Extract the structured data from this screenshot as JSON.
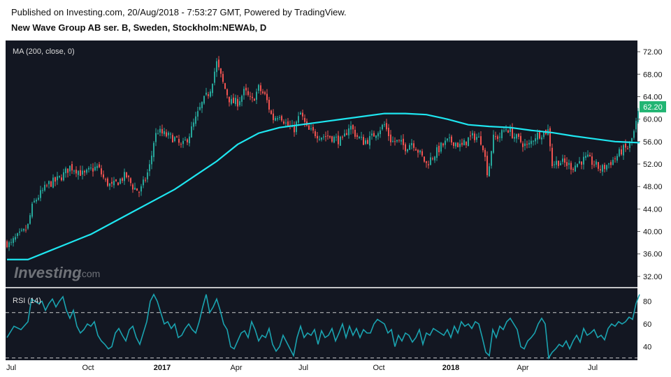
{
  "header": {
    "published": "Published on Investing.com, 20/Aug/2018 - 7:53:27 GMT, Powered by TradingView.",
    "title": "New Wave Group AB ser. B, Sweden, Stockholm:NEWAb, D"
  },
  "logo": {
    "main": "Investing",
    "suffix": ".com"
  },
  "colors": {
    "background": "#131722",
    "up": "#26a69a",
    "down": "#ef5350",
    "ma": "#1ee6f0",
    "rsi": "#1aa3b0",
    "last_price": "#22b573"
  },
  "chart_data": [
    {
      "type": "candlestick",
      "indicator_label": "MA (200, close, 0)",
      "ylim": [
        30,
        74
      ],
      "y_ticks": [
        "72.00",
        "68.00",
        "64.00",
        "60.00",
        "56.00",
        "52.00",
        "48.00",
        "44.00",
        "40.00",
        "36.00",
        "32.00"
      ],
      "last_price": "62.20",
      "x_ticks": [
        {
          "label": "Jul",
          "bold": false,
          "x": 16
        },
        {
          "label": "Oct",
          "bold": false,
          "x": 126
        },
        {
          "label": "2017",
          "bold": true,
          "x": 232
        },
        {
          "label": "Apr",
          "bold": false,
          "x": 338
        },
        {
          "label": "Jul",
          "bold": false,
          "x": 434
        },
        {
          "label": "Oct",
          "bold": false,
          "x": 542
        },
        {
          "label": "2018",
          "bold": true,
          "x": 645
        },
        {
          "label": "Apr",
          "bold": false,
          "x": 748
        },
        {
          "label": "Jul",
          "bold": false,
          "x": 848
        }
      ],
      "price_path": [
        [
          0,
          38
        ],
        [
          5,
          37.5
        ],
        [
          10,
          38.5
        ],
        [
          15,
          39
        ],
        [
          20,
          39.5
        ],
        [
          25,
          40
        ],
        [
          30,
          41
        ],
        [
          35,
          44
        ],
        [
          40,
          45.5
        ],
        [
          50,
          47
        ],
        [
          60,
          48.5
        ],
        [
          70,
          49
        ],
        [
          80,
          50
        ],
        [
          90,
          51.5
        ],
        [
          100,
          51
        ],
        [
          110,
          50
        ],
        [
          120,
          51
        ],
        [
          130,
          51.5
        ],
        [
          140,
          49
        ],
        [
          150,
          48
        ],
        [
          160,
          49
        ],
        [
          170,
          50
        ],
        [
          180,
          48
        ],
        [
          190,
          47
        ],
        [
          200,
          50
        ],
        [
          205,
          52
        ],
        [
          210,
          56
        ],
        [
          215,
          58
        ],
        [
          220,
          57.5
        ],
        [
          230,
          57
        ],
        [
          240,
          56.5
        ],
        [
          250,
          55
        ],
        [
          260,
          57
        ],
        [
          270,
          60
        ],
        [
          280,
          63
        ],
        [
          290,
          65
        ],
        [
          300,
          70
        ],
        [
          305,
          68
        ],
        [
          310,
          66
        ],
        [
          320,
          63
        ],
        [
          330,
          63
        ],
        [
          340,
          65
        ],
        [
          350,
          63
        ],
        [
          360,
          65.5
        ],
        [
          370,
          64
        ],
        [
          380,
          60
        ],
        [
          390,
          61
        ],
        [
          400,
          59
        ],
        [
          410,
          58
        ],
        [
          420,
          61
        ],
        [
          430,
          58
        ],
        [
          440,
          57.5
        ],
        [
          450,
          57
        ],
        [
          460,
          57
        ],
        [
          470,
          56.5
        ],
        [
          480,
          56
        ],
        [
          490,
          59
        ],
        [
          500,
          57
        ],
        [
          510,
          56
        ],
        [
          520,
          56.5
        ],
        [
          530,
          58
        ],
        [
          540,
          59
        ],
        [
          550,
          56
        ],
        [
          560,
          56
        ],
        [
          570,
          55
        ],
        [
          580,
          56
        ],
        [
          590,
          54
        ],
        [
          600,
          52
        ],
        [
          610,
          53.5
        ],
        [
          620,
          55
        ],
        [
          630,
          56
        ],
        [
          640,
          56
        ],
        [
          650,
          55
        ],
        [
          660,
          56.5
        ],
        [
          670,
          57
        ],
        [
          680,
          56
        ],
        [
          688,
          50
        ],
        [
          695,
          56.5
        ],
        [
          705,
          57
        ],
        [
          715,
          58.5
        ],
        [
          725,
          57
        ],
        [
          735,
          56
        ],
        [
          745,
          55
        ],
        [
          755,
          57
        ],
        [
          765,
          57.5
        ],
        [
          775,
          58
        ],
        [
          780,
          52
        ],
        [
          790,
          52.5
        ],
        [
          800,
          52
        ],
        [
          810,
          51.5
        ],
        [
          820,
          52.5
        ],
        [
          830,
          53
        ],
        [
          840,
          52
        ],
        [
          850,
          51
        ],
        [
          860,
          52
        ],
        [
          870,
          53
        ],
        [
          880,
          54.5
        ],
        [
          890,
          55
        ],
        [
          898,
          58
        ],
        [
          905,
          62.2
        ]
      ],
      "ma_path": [
        [
          0,
          35
        ],
        [
          30,
          35
        ],
        [
          60,
          36.5
        ],
        [
          90,
          38
        ],
        [
          120,
          39.5
        ],
        [
          150,
          41.5
        ],
        [
          180,
          43.5
        ],
        [
          210,
          45.5
        ],
        [
          240,
          47.5
        ],
        [
          270,
          50
        ],
        [
          300,
          52.5
        ],
        [
          330,
          55.5
        ],
        [
          360,
          57.5
        ],
        [
          390,
          58.5
        ],
        [
          420,
          59
        ],
        [
          450,
          59.5
        ],
        [
          480,
          60
        ],
        [
          510,
          60.5
        ],
        [
          540,
          61
        ],
        [
          570,
          61
        ],
        [
          600,
          60.8
        ],
        [
          630,
          60
        ],
        [
          660,
          59
        ],
        [
          690,
          58.7
        ],
        [
          720,
          58.5
        ],
        [
          750,
          58
        ],
        [
          780,
          57.6
        ],
        [
          810,
          57
        ],
        [
          840,
          56.5
        ],
        [
          870,
          56
        ],
        [
          905,
          55.8
        ]
      ]
    },
    {
      "type": "line",
      "indicator_label": "RSI (14)",
      "ylim": [
        28,
        92
      ],
      "y_ticks": [
        "80",
        "60",
        "40"
      ],
      "bands": [
        70,
        30
      ],
      "values": [
        [
          0,
          48
        ],
        [
          10,
          58
        ],
        [
          20,
          55
        ],
        [
          30,
          62
        ],
        [
          35,
          82
        ],
        [
          40,
          80
        ],
        [
          45,
          78
        ],
        [
          50,
          80
        ],
        [
          55,
          72
        ],
        [
          60,
          78
        ],
        [
          65,
          82
        ],
        [
          70,
          75
        ],
        [
          75,
          80
        ],
        [
          80,
          84
        ],
        [
          85,
          72
        ],
        [
          90,
          65
        ],
        [
          95,
          72
        ],
        [
          100,
          58
        ],
        [
          105,
          52
        ],
        [
          110,
          55
        ],
        [
          115,
          60
        ],
        [
          120,
          58
        ],
        [
          125,
          62
        ],
        [
          130,
          50
        ],
        [
          135,
          45
        ],
        [
          140,
          42
        ],
        [
          145,
          38
        ],
        [
          150,
          40
        ],
        [
          155,
          52
        ],
        [
          160,
          56
        ],
        [
          165,
          50
        ],
        [
          170,
          45
        ],
        [
          175,
          55
        ],
        [
          180,
          58
        ],
        [
          185,
          48
        ],
        [
          190,
          42
        ],
        [
          195,
          52
        ],
        [
          200,
          62
        ],
        [
          205,
          80
        ],
        [
          210,
          86
        ],
        [
          215,
          80
        ],
        [
          220,
          70
        ],
        [
          225,
          60
        ],
        [
          230,
          62
        ],
        [
          235,
          56
        ],
        [
          240,
          60
        ],
        [
          245,
          48
        ],
        [
          250,
          50
        ],
        [
          255,
          56
        ],
        [
          260,
          60
        ],
        [
          265,
          55
        ],
        [
          270,
          52
        ],
        [
          275,
          62
        ],
        [
          280,
          75
        ],
        [
          285,
          86
        ],
        [
          290,
          70
        ],
        [
          295,
          75
        ],
        [
          300,
          82
        ],
        [
          305,
          72
        ],
        [
          310,
          60
        ],
        [
          315,
          55
        ],
        [
          320,
          40
        ],
        [
          325,
          38
        ],
        [
          330,
          45
        ],
        [
          335,
          52
        ],
        [
          340,
          54
        ],
        [
          345,
          48
        ],
        [
          350,
          62
        ],
        [
          355,
          55
        ],
        [
          360,
          45
        ],
        [
          365,
          50
        ],
        [
          370,
          48
        ],
        [
          375,
          56
        ],
        [
          380,
          42
        ],
        [
          385,
          36
        ],
        [
          390,
          40
        ],
        [
          395,
          50
        ],
        [
          400,
          44
        ],
        [
          405,
          38
        ],
        [
          410,
          32
        ],
        [
          415,
          48
        ],
        [
          420,
          58
        ],
        [
          425,
          48
        ],
        [
          430,
          52
        ],
        [
          435,
          50
        ],
        [
          440,
          55
        ],
        [
          445,
          42
        ],
        [
          450,
          54
        ],
        [
          455,
          48
        ],
        [
          460,
          50
        ],
        [
          465,
          56
        ],
        [
          470,
          45
        ],
        [
          475,
          52
        ],
        [
          480,
          60
        ],
        [
          485,
          48
        ],
        [
          490,
          58
        ],
        [
          495,
          50
        ],
        [
          500,
          56
        ],
        [
          505,
          48
        ],
        [
          510,
          55
        ],
        [
          515,
          52
        ],
        [
          520,
          52
        ],
        [
          525,
          60
        ],
        [
          530,
          64
        ],
        [
          535,
          62
        ],
        [
          540,
          60
        ],
        [
          545,
          52
        ],
        [
          550,
          55
        ],
        [
          555,
          40
        ],
        [
          560,
          50
        ],
        [
          565,
          45
        ],
        [
          570,
          52
        ],
        [
          575,
          50
        ],
        [
          580,
          44
        ],
        [
          585,
          48
        ],
        [
          590,
          55
        ],
        [
          595,
          42
        ],
        [
          600,
          52
        ],
        [
          605,
          50
        ],
        [
          610,
          56
        ],
        [
          615,
          54
        ],
        [
          620,
          52
        ],
        [
          625,
          50
        ],
        [
          630,
          55
        ],
        [
          635,
          48
        ],
        [
          640,
          58
        ],
        [
          645,
          52
        ],
        [
          650,
          62
        ],
        [
          655,
          58
        ],
        [
          660,
          60
        ],
        [
          665,
          56
        ],
        [
          670,
          62
        ],
        [
          675,
          60
        ],
        [
          680,
          48
        ],
        [
          685,
          35
        ],
        [
          690,
          32
        ],
        [
          695,
          55
        ],
        [
          700,
          48
        ],
        [
          705,
          58
        ],
        [
          710,
          55
        ],
        [
          715,
          62
        ],
        [
          720,
          65
        ],
        [
          725,
          60
        ],
        [
          730,
          55
        ],
        [
          735,
          40
        ],
        [
          740,
          38
        ],
        [
          745,
          45
        ],
        [
          750,
          48
        ],
        [
          755,
          52
        ],
        [
          760,
          60
        ],
        [
          765,
          65
        ],
        [
          770,
          60
        ],
        [
          775,
          30
        ],
        [
          780,
          35
        ],
        [
          785,
          38
        ],
        [
          790,
          42
        ],
        [
          795,
          40
        ],
        [
          800,
          45
        ],
        [
          805,
          38
        ],
        [
          810,
          45
        ],
        [
          815,
          50
        ],
        [
          820,
          44
        ],
        [
          825,
          56
        ],
        [
          830,
          50
        ],
        [
          835,
          52
        ],
        [
          840,
          55
        ],
        [
          845,
          48
        ],
        [
          850,
          50
        ],
        [
          855,
          46
        ],
        [
          860,
          56
        ],
        [
          865,
          60
        ],
        [
          870,
          58
        ],
        [
          875,
          62
        ],
        [
          880,
          60
        ],
        [
          885,
          62
        ],
        [
          890,
          66
        ],
        [
          895,
          64
        ],
        [
          900,
          78
        ],
        [
          905,
          86
        ]
      ]
    }
  ]
}
